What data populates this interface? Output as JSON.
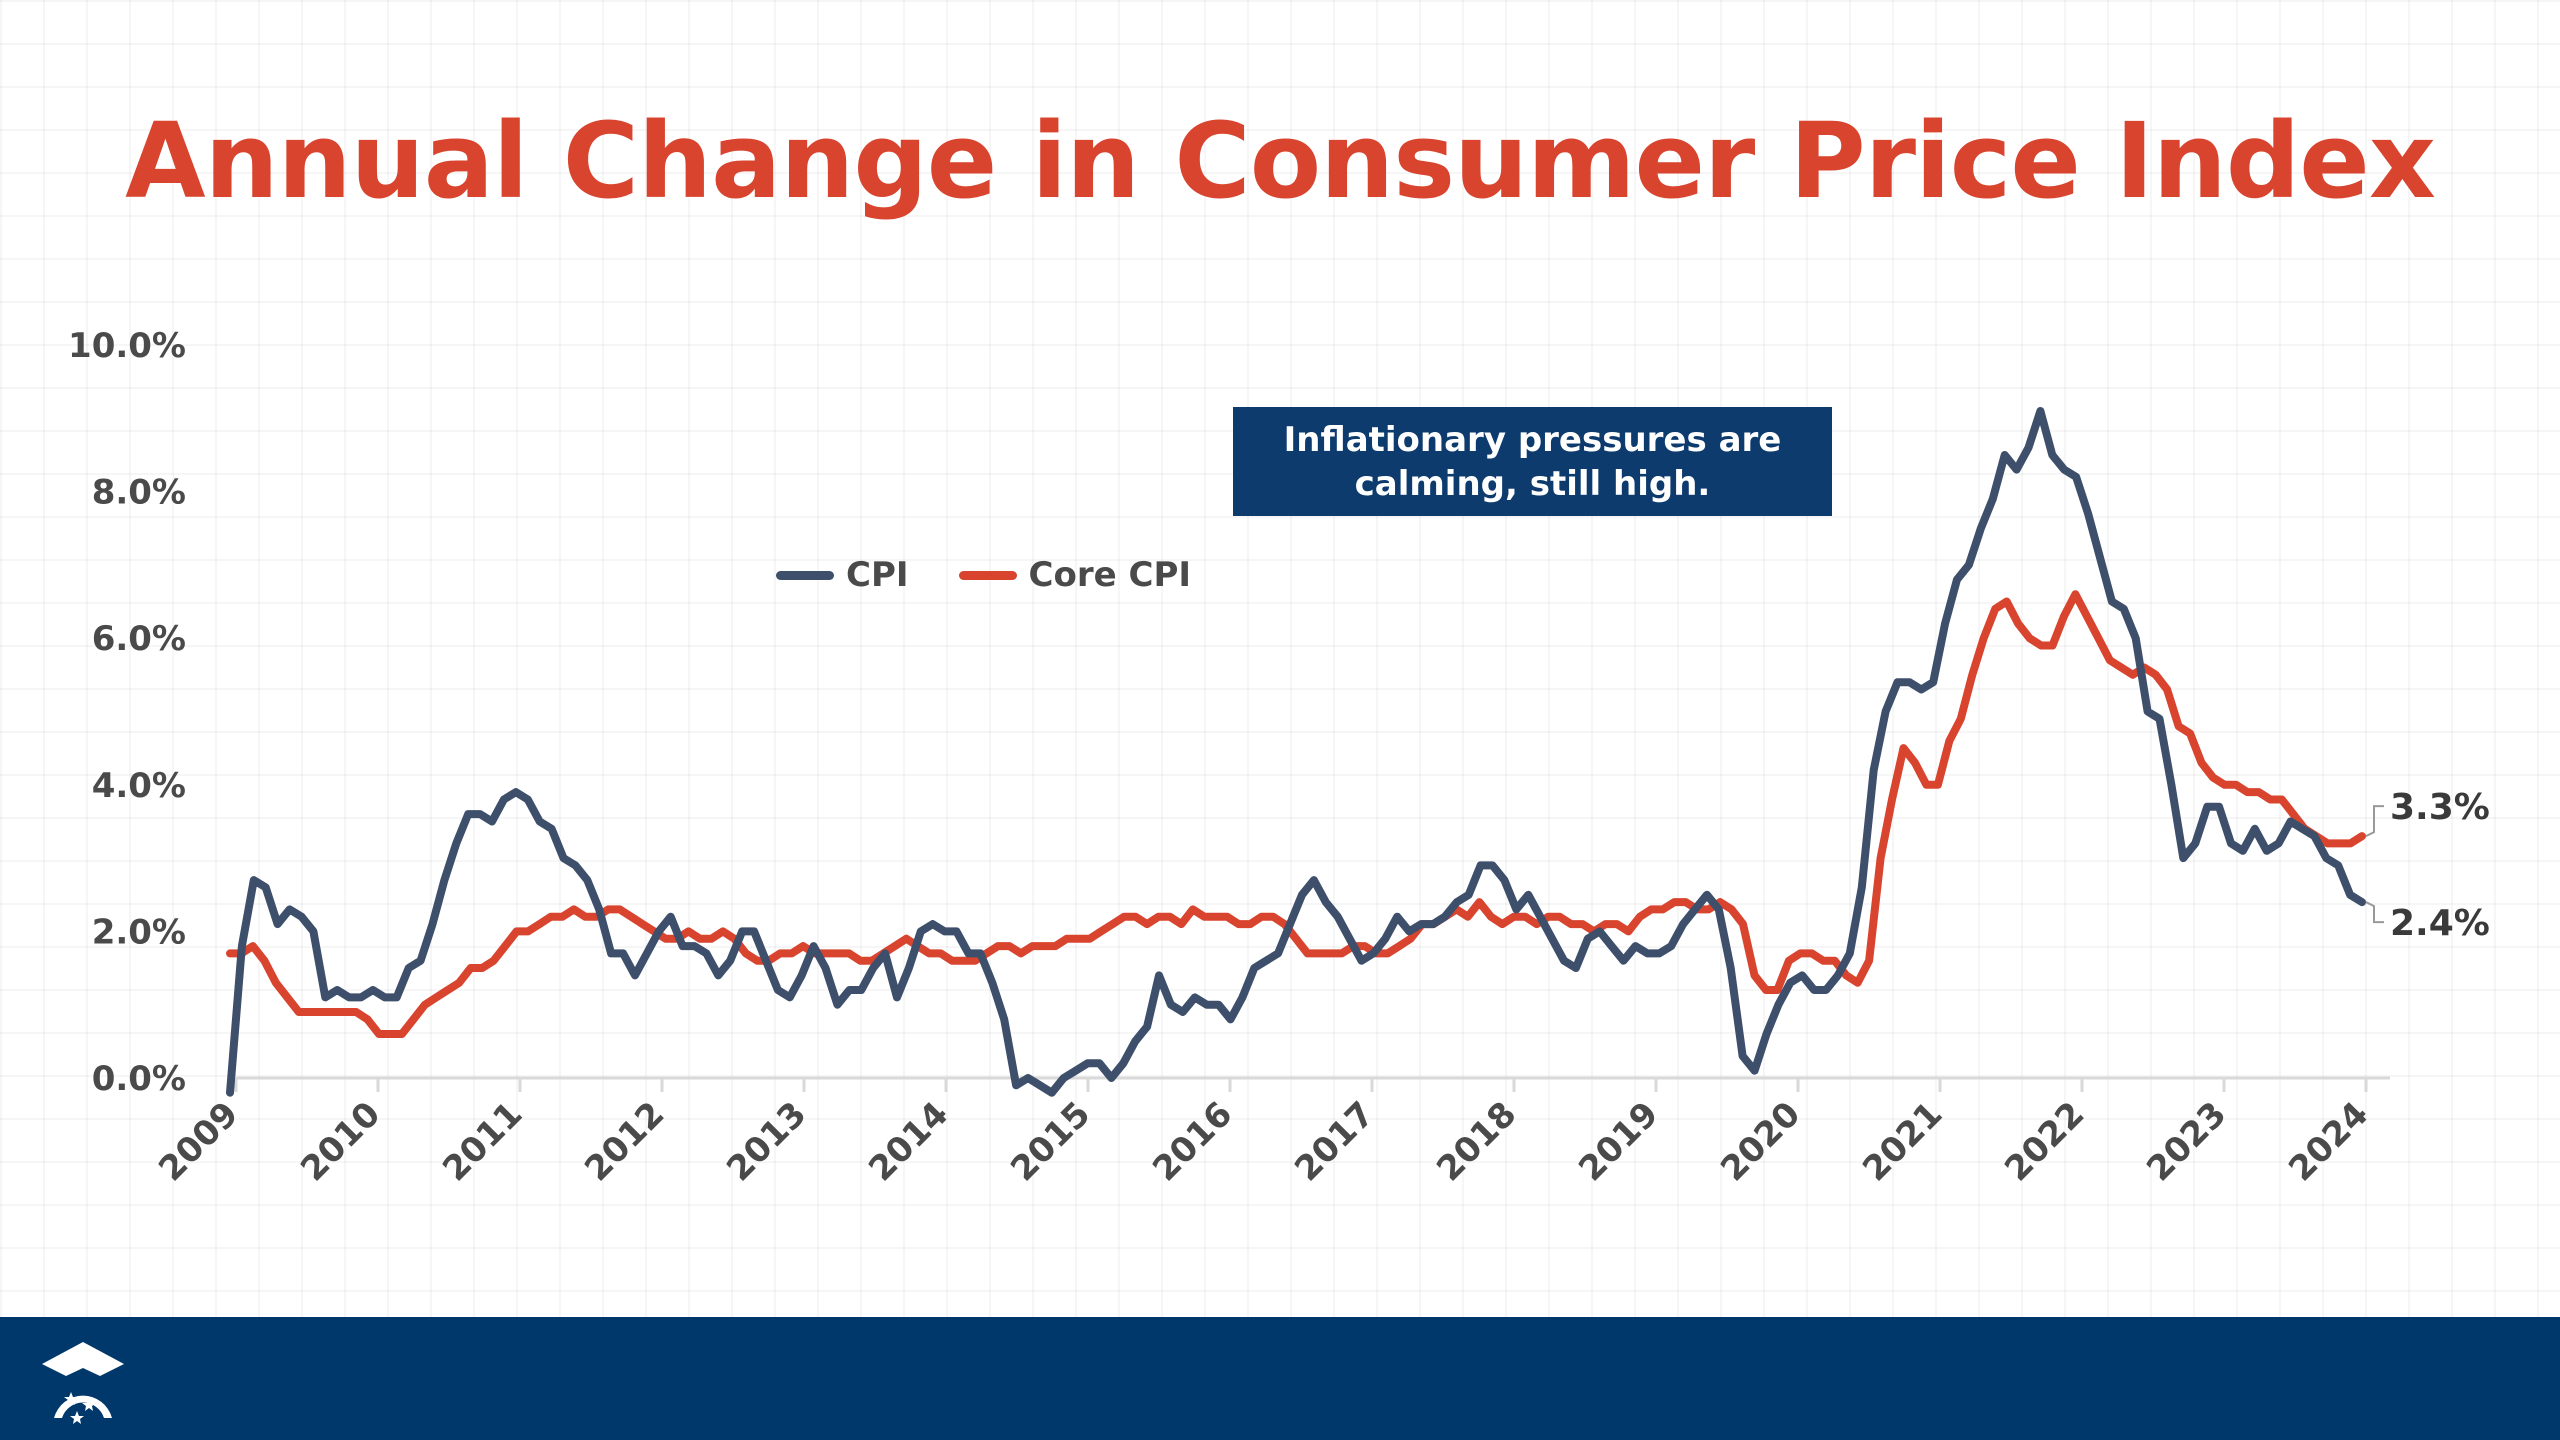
{
  "colors": {
    "title": "#d9442f",
    "cpi": "#3d4f6b",
    "core_cpi": "#d9442f",
    "annotation_bg": "#0d3b6e",
    "footer_bg": "#00386b"
  },
  "annotation": {
    "line1": "Inflationary pressures are",
    "line2": "calming, still high."
  },
  "footer": {
    "logo_icon": "graduation-cap-stars-icon"
  },
  "chart_data": {
    "type": "line",
    "title": "Annual Change in Consumer Price Index",
    "xlabel": "",
    "ylabel": "",
    "ylim": [
      0,
      10
    ],
    "yticks": [
      "0.0%",
      "2.0%",
      "4.0%",
      "6.0%",
      "8.0%",
      "10.0%"
    ],
    "ytick_values": [
      0,
      2,
      4,
      6,
      8,
      10
    ],
    "xticks": [
      "2009",
      "2010",
      "2011",
      "2012",
      "2013",
      "2014",
      "2015",
      "2016",
      "2017",
      "2018",
      "2019",
      "2020",
      "2021",
      "2022",
      "2023",
      "2024"
    ],
    "grid": true,
    "legend": {
      "position": "top-left",
      "entries": [
        "CPI",
        "Core CPI"
      ]
    },
    "end_labels": {
      "cpi": "2.4%",
      "core_cpi": "3.3%"
    },
    "x_start": "2009-10",
    "x_end": "2024-09",
    "x_frequency": "monthly",
    "series": [
      {
        "name": "CPI",
        "values": [
          -0.2,
          1.8,
          2.7,
          2.6,
          2.1,
          2.3,
          2.2,
          2.0,
          1.1,
          1.2,
          1.1,
          1.1,
          1.2,
          1.1,
          1.1,
          1.5,
          1.6,
          2.1,
          2.7,
          3.2,
          3.6,
          3.6,
          3.5,
          3.8,
          3.9,
          3.8,
          3.5,
          3.4,
          3.0,
          2.9,
          2.7,
          2.3,
          1.7,
          1.7,
          1.4,
          1.7,
          2.0,
          2.2,
          1.8,
          1.8,
          1.7,
          1.4,
          1.6,
          2.0,
          2.0,
          1.6,
          1.2,
          1.1,
          1.4,
          1.8,
          1.5,
          1.0,
          1.2,
          1.2,
          1.5,
          1.7,
          1.1,
          1.5,
          2.0,
          2.1,
          2.0,
          2.0,
          1.7,
          1.7,
          1.3,
          0.8,
          -0.1,
          0.0,
          -0.1,
          -0.2,
          0.0,
          0.1,
          0.2,
          0.2,
          0.0,
          0.2,
          0.5,
          0.7,
          1.4,
          1.0,
          0.9,
          1.1,
          1.0,
          1.0,
          0.8,
          1.1,
          1.5,
          1.6,
          1.7,
          2.1,
          2.5,
          2.7,
          2.4,
          2.2,
          1.9,
          1.6,
          1.7,
          1.9,
          2.2,
          2.0,
          2.1,
          2.1,
          2.2,
          2.4,
          2.5,
          2.9,
          2.9,
          2.7,
          2.3,
          2.5,
          2.2,
          1.9,
          1.6,
          1.5,
          1.9,
          2.0,
          1.8,
          1.6,
          1.8,
          1.7,
          1.7,
          1.8,
          2.1,
          2.3,
          2.5,
          2.3,
          1.5,
          0.3,
          0.1,
          0.6,
          1.0,
          1.3,
          1.4,
          1.2,
          1.2,
          1.4,
          1.7,
          2.6,
          4.2,
          5.0,
          5.4,
          5.4,
          5.3,
          5.4,
          6.2,
          6.8,
          7.0,
          7.5,
          7.9,
          8.5,
          8.3,
          8.6,
          9.1,
          8.5,
          8.3,
          8.2,
          7.7,
          7.1,
          6.5,
          6.4,
          6.0,
          5.0,
          4.9,
          4.0,
          3.0,
          3.2,
          3.7,
          3.7,
          3.2,
          3.1,
          3.4,
          3.1,
          3.2,
          3.5,
          3.4,
          3.3,
          3.0,
          2.9,
          2.5,
          2.4
        ]
      },
      {
        "name": "Core CPI",
        "values": [
          1.7,
          1.7,
          1.8,
          1.6,
          1.3,
          1.1,
          0.9,
          0.9,
          0.9,
          0.9,
          0.9,
          0.9,
          0.8,
          0.6,
          0.6,
          0.6,
          0.8,
          1.0,
          1.1,
          1.2,
          1.3,
          1.5,
          1.5,
          1.6,
          1.8,
          2.0,
          2.0,
          2.1,
          2.2,
          2.2,
          2.3,
          2.2,
          2.2,
          2.3,
          2.3,
          2.2,
          2.1,
          2.0,
          1.9,
          1.9,
          2.0,
          1.9,
          1.9,
          2.0,
          1.9,
          1.7,
          1.6,
          1.6,
          1.7,
          1.7,
          1.8,
          1.7,
          1.7,
          1.7,
          1.7,
          1.6,
          1.6,
          1.7,
          1.8,
          1.9,
          1.8,
          1.7,
          1.7,
          1.6,
          1.6,
          1.6,
          1.7,
          1.8,
          1.8,
          1.7,
          1.8,
          1.8,
          1.8,
          1.9,
          1.9,
          1.9,
          2.0,
          2.1,
          2.2,
          2.2,
          2.1,
          2.2,
          2.2,
          2.1,
          2.3,
          2.2,
          2.2,
          2.2,
          2.1,
          2.1,
          2.2,
          2.2,
          2.1,
          1.9,
          1.7,
          1.7,
          1.7,
          1.7,
          1.8,
          1.8,
          1.7,
          1.7,
          1.8,
          1.9,
          2.1,
          2.1,
          2.2,
          2.3,
          2.2,
          2.4,
          2.2,
          2.1,
          2.2,
          2.2,
          2.1,
          2.2,
          2.2,
          2.1,
          2.1,
          2.0,
          2.1,
          2.1,
          2.0,
          2.2,
          2.3,
          2.3,
          2.4,
          2.4,
          2.3,
          2.3,
          2.4,
          2.3,
          2.1,
          1.4,
          1.2,
          1.2,
          1.6,
          1.7,
          1.7,
          1.6,
          1.6,
          1.4,
          1.3,
          1.6,
          3.0,
          3.8,
          4.5,
          4.3,
          4.0,
          4.0,
          4.6,
          4.9,
          5.5,
          6.0,
          6.4,
          6.5,
          6.2,
          6.0,
          5.9,
          5.9,
          6.3,
          6.6,
          6.3,
          6.0,
          5.7,
          5.6,
          5.5,
          5.6,
          5.5,
          5.3,
          4.8,
          4.7,
          4.3,
          4.1,
          4.0,
          4.0,
          3.9,
          3.9,
          3.8,
          3.8,
          3.6,
          3.4,
          3.3,
          3.2,
          3.2,
          3.2,
          3.3
        ]
      }
    ]
  }
}
